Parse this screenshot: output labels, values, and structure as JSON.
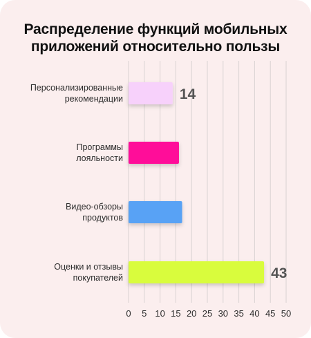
{
  "chart_data": {
    "type": "bar",
    "orientation": "horizontal",
    "title_lines": [
      "Распределение функций мобильных",
      "приложений относительно пользы"
    ],
    "categories": [
      [
        "Персонализированные",
        "рекомендации"
      ],
      [
        "Программы",
        "лояльности"
      ],
      [
        "Видео-обзоры",
        "продуктов"
      ],
      [
        "Оценки и отзывы",
        "покупателей"
      ]
    ],
    "values": [
      14,
      16,
      17,
      43
    ],
    "data_labels": [
      "14",
      "",
      "",
      "43"
    ],
    "colors": [
      "#f7d1fb",
      "#ff1199",
      "#58a2f5",
      "#d9fc3c"
    ],
    "xlim": [
      0,
      50
    ],
    "xticks": [
      "0",
      "5",
      "10",
      "15",
      "20",
      "25",
      "30",
      "35",
      "40",
      "45",
      "50"
    ],
    "grid": true,
    "xlabel": "",
    "ylabel": ""
  }
}
